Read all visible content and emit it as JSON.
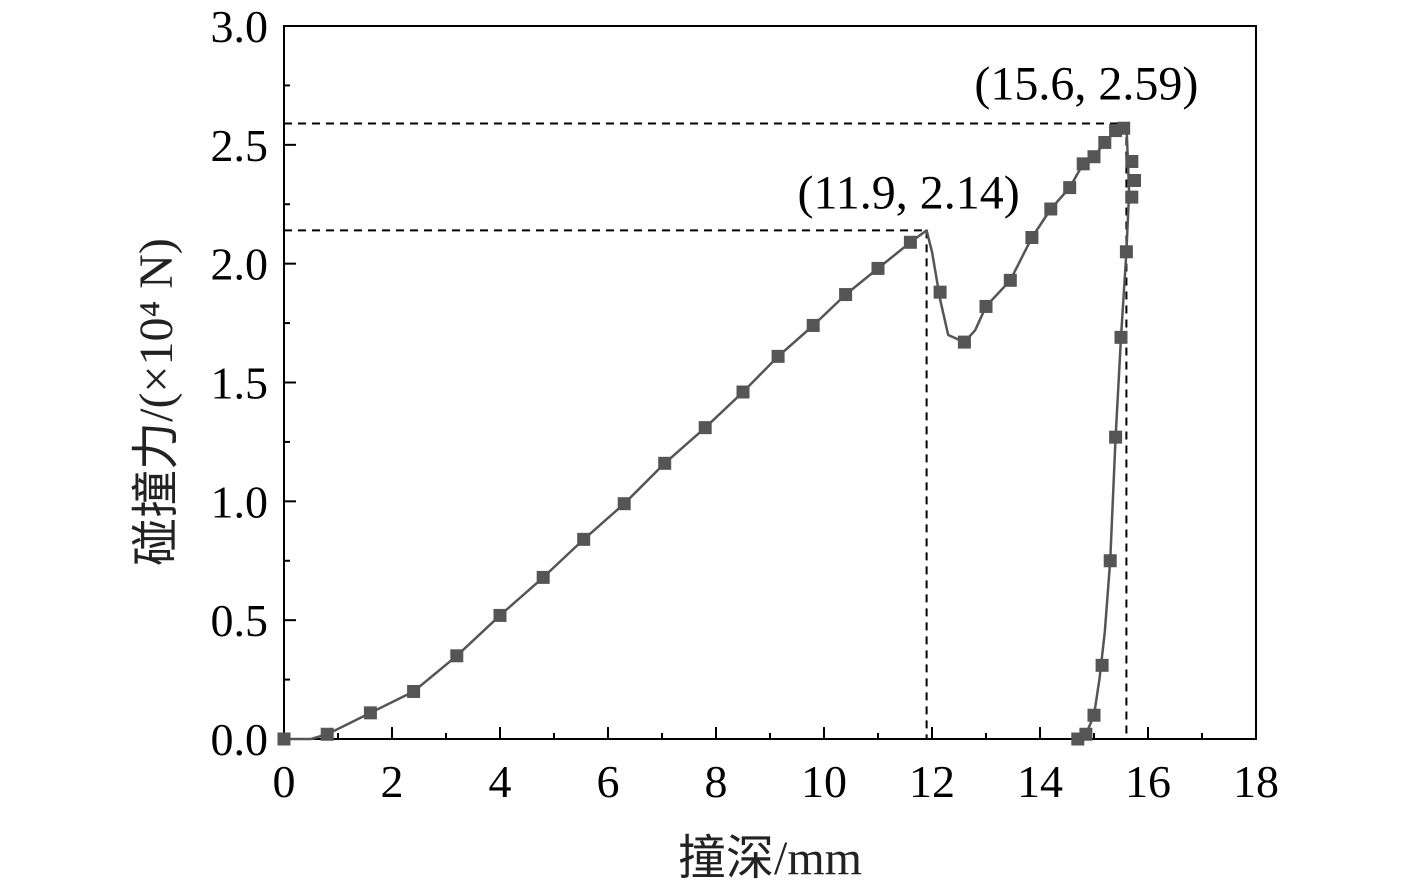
{
  "chart_data": {
    "type": "line",
    "title": "",
    "xlabel": "撞深/mm",
    "ylabel": "碰撞力/(×10⁴ N)",
    "xlim": [
      0,
      18
    ],
    "ylim": [
      0,
      3.0
    ],
    "x_ticks": [
      "0",
      "2",
      "4",
      "6",
      "8",
      "10",
      "12",
      "14",
      "16",
      "18"
    ],
    "y_ticks": [
      "0.0",
      "0.5",
      "1.0",
      "1.5",
      "2.0",
      "2.5",
      "3.0"
    ],
    "grid": false,
    "legend": "none",
    "series": [
      {
        "color": "#555555",
        "marker": "square",
        "x": [
          0.0,
          0.8,
          1.6,
          2.4,
          3.2,
          4.0,
          4.8,
          5.55,
          6.3,
          7.05,
          7.8,
          8.5,
          9.15,
          9.8,
          10.4,
          11.0,
          11.6,
          12.15,
          12.6,
          13.0,
          13.45,
          13.85,
          14.2,
          14.55,
          14.8,
          15.0,
          15.2,
          15.4,
          15.55,
          15.7,
          15.75,
          15.7,
          15.6,
          15.5,
          15.4,
          15.3,
          15.15,
          15.0,
          14.85,
          14.7
        ],
        "y": [
          0.0,
          0.02,
          0.11,
          0.2,
          0.35,
          0.52,
          0.68,
          0.84,
          0.99,
          1.16,
          1.31,
          1.46,
          1.61,
          1.74,
          1.87,
          1.98,
          2.09,
          1.88,
          1.67,
          1.82,
          1.93,
          2.11,
          2.23,
          2.32,
          2.42,
          2.45,
          2.51,
          2.56,
          2.57,
          2.43,
          2.35,
          2.28,
          2.05,
          1.69,
          1.27,
          0.75,
          0.31,
          0.1,
          0.02,
          0.0
        ],
        "curve_x": [
          0.0,
          0.5,
          0.8,
          1.6,
          2.4,
          3.2,
          4.0,
          4.8,
          5.55,
          6.3,
          7.05,
          7.8,
          8.5,
          9.15,
          9.8,
          10.4,
          11.0,
          11.6,
          11.9,
          12.0,
          12.15,
          12.3,
          12.6,
          12.8,
          13.0,
          13.45,
          13.85,
          14.2,
          14.55,
          14.8,
          15.0,
          15.2,
          15.4,
          15.6,
          15.65,
          15.6,
          15.5,
          15.4,
          15.3,
          15.2,
          15.1,
          15.0,
          14.85,
          14.7
        ],
        "curve_y": [
          0.0,
          0.0,
          0.02,
          0.11,
          0.2,
          0.35,
          0.52,
          0.68,
          0.84,
          0.99,
          1.16,
          1.31,
          1.46,
          1.61,
          1.74,
          1.87,
          1.98,
          2.09,
          2.14,
          2.05,
          1.85,
          1.7,
          1.67,
          1.72,
          1.82,
          1.93,
          2.11,
          2.23,
          2.32,
          2.42,
          2.45,
          2.51,
          2.56,
          2.59,
          2.3,
          2.05,
          1.69,
          1.27,
          0.75,
          0.45,
          0.25,
          0.1,
          0.02,
          0.0
        ]
      }
    ],
    "annotations": [
      {
        "text": "(11.9, 2.14)",
        "x": 11.9,
        "y": 2.14
      },
      {
        "text": "(15.6, 2.59)",
        "x": 15.6,
        "y": 2.59
      }
    ]
  }
}
